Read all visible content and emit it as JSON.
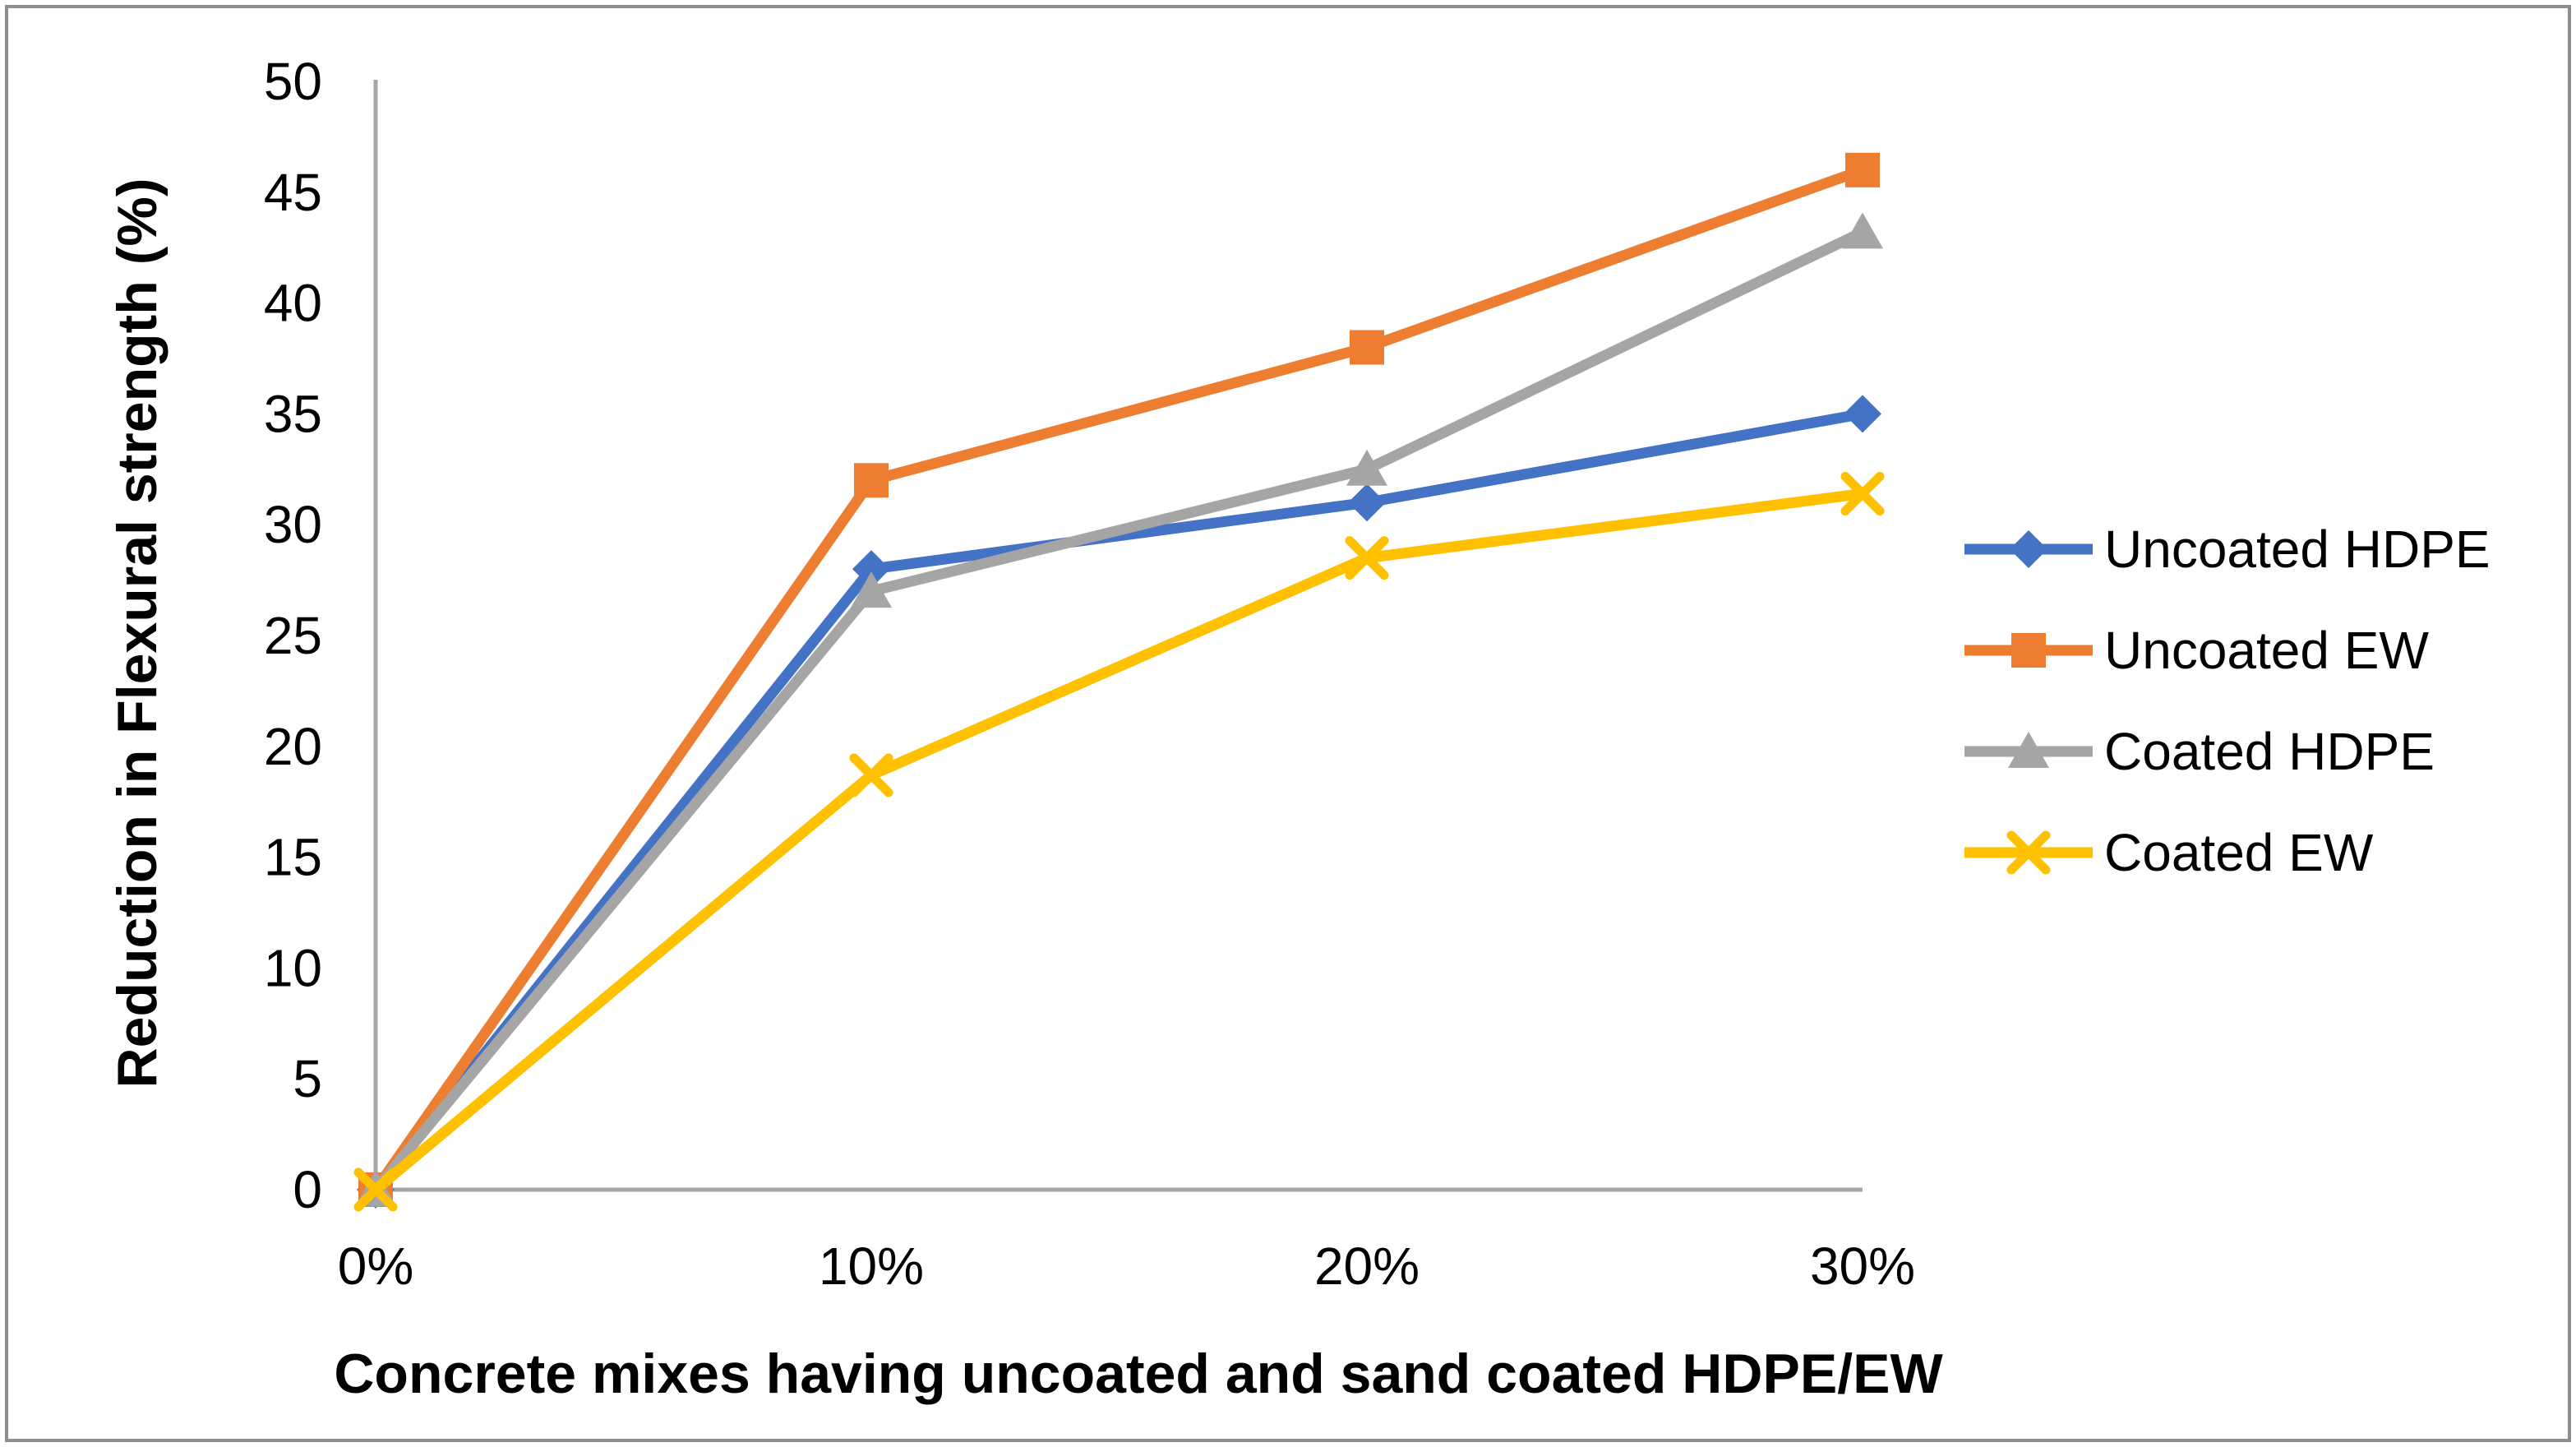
{
  "chart_data": {
    "type": "line",
    "title": "",
    "xlabel": "Concrete mixes having uncoated and sand coated HDPE/EW",
    "ylabel": "Reduction in Flexural strength (%)",
    "categories": [
      "0%",
      "10%",
      "20%",
      "30%"
    ],
    "series": [
      {
        "name": "Uncoated HDPE",
        "marker": "diamond",
        "color": "#4472C4",
        "values": [
          0,
          28,
          31,
          35
        ]
      },
      {
        "name": "Uncoated EW",
        "marker": "square",
        "color": "#ED7D31",
        "values": [
          0,
          32,
          38,
          46
        ]
      },
      {
        "name": "Coated HDPE",
        "marker": "triangle",
        "color": "#A5A5A5",
        "values": [
          0,
          27,
          32.5,
          43.2
        ]
      },
      {
        "name": "Coated EW",
        "marker": "x",
        "color": "#FFC000",
        "values": [
          0,
          18.7,
          28.5,
          31.4
        ]
      }
    ],
    "ylim": [
      0,
      50
    ],
    "ytick_step": 5,
    "grid": false,
    "legend_position": "right",
    "axis_color": "#A6A6A6",
    "text_color": "#000000"
  }
}
